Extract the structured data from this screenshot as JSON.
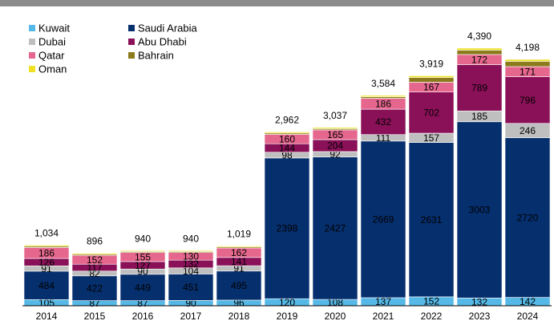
{
  "chart_data": {
    "type": "stacked-bar",
    "categories": [
      "2014",
      "2015",
      "2016",
      "2017",
      "2018",
      "2019",
      "2020",
      "2021",
      "2022",
      "2023",
      "2024"
    ],
    "series": [
      {
        "name": "Kuwait",
        "color": "#55b8e6",
        "label_color": "#000000",
        "show_labels": true,
        "values": [
          105,
          87,
          87,
          90,
          96,
          120,
          108,
          137,
          152,
          132,
          142
        ]
      },
      {
        "name": "Saudi Arabia",
        "color": "#062f6e",
        "label_color": "#ffffff",
        "show_labels": true,
        "values": [
          484,
          422,
          449,
          451,
          495,
          2398,
          2427,
          2669,
          2631,
          3003,
          2720
        ]
      },
      {
        "name": "Dubai",
        "color": "#bfbfbf",
        "label_color": "#000000",
        "show_labels": true,
        "values": [
          91,
          82,
          90,
          104,
          91,
          98,
          92,
          111,
          157,
          185,
          246
        ]
      },
      {
        "name": "Abu Dhabi",
        "color": "#8a1058",
        "label_color": "#ffffff",
        "show_labels": true,
        "values": [
          126,
          117,
          127,
          132,
          141,
          144,
          204,
          432,
          702,
          789,
          796
        ]
      },
      {
        "name": "Qatar",
        "color": "#e6678e",
        "label_color": "#000000",
        "show_labels": true,
        "values": [
          186,
          152,
          155,
          130,
          162,
          160,
          165,
          186,
          167,
          172,
          171
        ]
      },
      {
        "name": "Bahrain",
        "color": "#8c7b1c",
        "label_color": "#000000",
        "show_labels": false,
        "values": [
          22,
          18,
          16,
          17,
          18,
          22,
          21,
          27,
          80,
          75,
          90
        ]
      },
      {
        "name": "Oman",
        "color": "#efe024",
        "label_color": "#000000",
        "show_labels": false,
        "values": [
          20,
          18,
          16,
          16,
          16,
          20,
          20,
          22,
          30,
          34,
          33
        ]
      }
    ],
    "totals": [
      1034,
      896,
      940,
      940,
      1019,
      2962,
      3037,
      3584,
      3919,
      4390,
      4198
    ],
    "total_labels": [
      "1,034",
      "896",
      "940",
      "940",
      "1,019",
      "2,962",
      "3,037",
      "3,584",
      "3,919",
      "4,390",
      "4,198"
    ],
    "ylim": [
      0,
      4800
    ]
  }
}
